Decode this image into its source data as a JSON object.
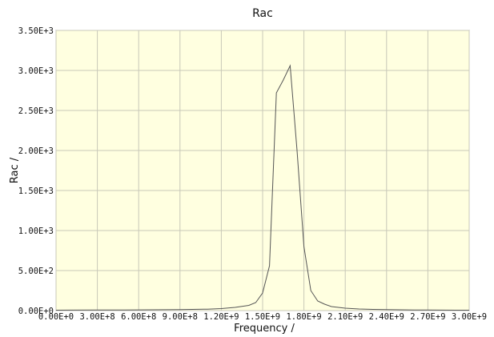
{
  "chart_data": {
    "type": "line",
    "title": "Rac",
    "xlabel": "Frequency /",
    "ylabel": "Rac /",
    "xlim": [
      0,
      3000000000
    ],
    "ylim": [
      0,
      3500
    ],
    "grid": true,
    "x_ticks": [
      0,
      300000000,
      600000000,
      900000000,
      1200000000,
      1500000000,
      1800000000,
      2100000000,
      2400000000,
      2700000000,
      3000000000
    ],
    "x_tick_labels": [
      "0.00E+0",
      "3.00E+8",
      "6.00E+8",
      "9.00E+8",
      "1.20E+9",
      "1.50E+9",
      "1.80E+9",
      "2.10E+9",
      "2.40E+9",
      "2.70E+9",
      "3.00E+9"
    ],
    "y_ticks": [
      0,
      500,
      1000,
      1500,
      2000,
      2500,
      3000,
      3500
    ],
    "y_tick_labels": [
      "0.00E+0",
      "5.00E+2",
      "1.00E+3",
      "1.50E+3",
      "2.00E+3",
      "2.50E+3",
      "3.00E+3",
      "3.50E+3"
    ],
    "colors": {
      "plot_bg": "#ffffe0",
      "grid": "#c8c8b8",
      "line": "#555555"
    },
    "series": [
      {
        "x": [
          0,
          100000000,
          300000000,
          500000000,
          700000000,
          900000000,
          1100000000,
          1200000000,
          1300000000,
          1400000000,
          1450000000,
          1500000000,
          1550000000,
          1600000000,
          1650000000,
          1700000000,
          1750000000,
          1800000000,
          1850000000,
          1900000000,
          1950000000,
          2000000000,
          2100000000,
          2200000000,
          2300000000,
          2400000000,
          2500000000,
          2600000000,
          2700000000,
          2800000000,
          2900000000,
          3000000000
        ],
        "y": [
          5,
          6,
          7,
          8,
          10,
          12,
          18,
          25,
          40,
          65,
          100,
          220,
          560,
          2720,
          2880,
          3060,
          2000,
          800,
          250,
          120,
          80,
          50,
          30,
          20,
          15,
          12,
          10,
          8,
          7,
          6,
          5,
          5
        ]
      }
    ]
  }
}
